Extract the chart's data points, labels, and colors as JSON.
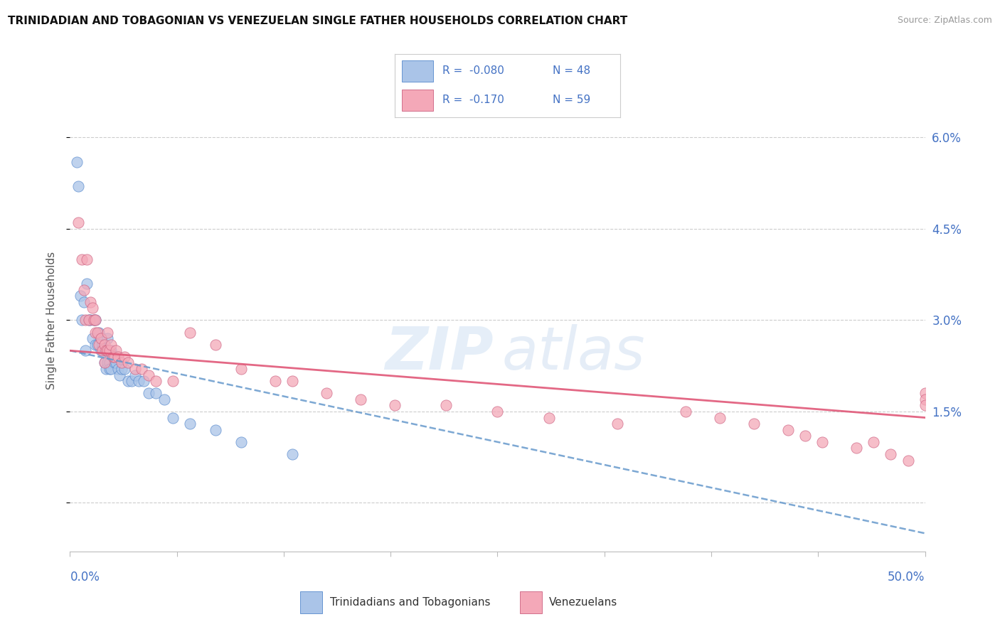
{
  "title": "TRINIDADIAN AND TOBAGONIAN VS VENEZUELAN SINGLE FATHER HOUSEHOLDS CORRELATION CHART",
  "source": "Source: ZipAtlas.com",
  "ylabel": "Single Father Households",
  "xmin": 0.0,
  "xmax": 0.5,
  "ymin": -0.008,
  "ymax": 0.068,
  "yticks": [
    0.0,
    0.015,
    0.03,
    0.045,
    0.06
  ],
  "ytick_labels": [
    "",
    "1.5%",
    "3.0%",
    "4.5%",
    "6.0%"
  ],
  "xticks": [
    0.0,
    0.0625,
    0.125,
    0.1875,
    0.25,
    0.3125,
    0.375,
    0.4375,
    0.5
  ],
  "color_blue": "#aac4e8",
  "color_blue_edge": "#5588cc",
  "color_pink": "#f4a8b8",
  "color_pink_edge": "#cc6080",
  "color_accent": "#4472c4",
  "color_line_blue": "#6699cc",
  "color_line_pink": "#e05878",
  "watermark_zip_color": "#d0dff0",
  "watermark_atlas_color": "#c8d8ec",
  "blue_scatter_x": [
    0.004,
    0.005,
    0.006,
    0.007,
    0.008,
    0.009,
    0.01,
    0.011,
    0.012,
    0.013,
    0.014,
    0.015,
    0.015,
    0.016,
    0.017,
    0.018,
    0.018,
    0.019,
    0.02,
    0.02,
    0.021,
    0.021,
    0.022,
    0.022,
    0.023,
    0.023,
    0.024,
    0.024,
    0.025,
    0.026,
    0.027,
    0.028,
    0.029,
    0.03,
    0.032,
    0.034,
    0.036,
    0.038,
    0.04,
    0.043,
    0.046,
    0.05,
    0.055,
    0.06,
    0.07,
    0.085,
    0.1,
    0.13
  ],
  "blue_scatter_y": [
    0.056,
    0.052,
    0.034,
    0.03,
    0.033,
    0.025,
    0.036,
    0.03,
    0.03,
    0.027,
    0.03,
    0.03,
    0.026,
    0.026,
    0.028,
    0.027,
    0.025,
    0.026,
    0.025,
    0.023,
    0.025,
    0.022,
    0.023,
    0.027,
    0.023,
    0.022,
    0.025,
    0.022,
    0.024,
    0.023,
    0.023,
    0.022,
    0.021,
    0.022,
    0.022,
    0.02,
    0.02,
    0.021,
    0.02,
    0.02,
    0.018,
    0.018,
    0.017,
    0.014,
    0.013,
    0.012,
    0.01,
    0.008
  ],
  "pink_scatter_x": [
    0.005,
    0.007,
    0.008,
    0.009,
    0.01,
    0.011,
    0.012,
    0.013,
    0.014,
    0.015,
    0.015,
    0.016,
    0.017,
    0.018,
    0.019,
    0.02,
    0.02,
    0.021,
    0.022,
    0.022,
    0.023,
    0.024,
    0.025,
    0.026,
    0.027,
    0.028,
    0.03,
    0.032,
    0.034,
    0.038,
    0.042,
    0.046,
    0.05,
    0.06,
    0.07,
    0.085,
    0.1,
    0.12,
    0.13,
    0.15,
    0.17,
    0.19,
    0.22,
    0.25,
    0.28,
    0.32,
    0.36,
    0.38,
    0.4,
    0.42,
    0.43,
    0.44,
    0.46,
    0.47,
    0.48,
    0.49,
    0.5,
    0.5,
    0.5
  ],
  "pink_scatter_y": [
    0.046,
    0.04,
    0.035,
    0.03,
    0.04,
    0.03,
    0.033,
    0.032,
    0.03,
    0.03,
    0.028,
    0.028,
    0.026,
    0.027,
    0.025,
    0.026,
    0.023,
    0.025,
    0.028,
    0.025,
    0.025,
    0.026,
    0.024,
    0.024,
    0.025,
    0.024,
    0.023,
    0.024,
    0.023,
    0.022,
    0.022,
    0.021,
    0.02,
    0.02,
    0.028,
    0.026,
    0.022,
    0.02,
    0.02,
    0.018,
    0.017,
    0.016,
    0.016,
    0.015,
    0.014,
    0.013,
    0.015,
    0.014,
    0.013,
    0.012,
    0.011,
    0.01,
    0.009,
    0.01,
    0.008,
    0.007,
    0.018,
    0.017,
    0.016
  ],
  "blue_trend_x": [
    0.0,
    0.5
  ],
  "blue_trend_y": [
    0.025,
    -0.005
  ],
  "pink_trend_x": [
    0.0,
    0.5
  ],
  "pink_trend_y": [
    0.025,
    0.014
  ],
  "legend_r1": "R =  -0.080",
  "legend_n1": "N = 48",
  "legend_r2": "R =  -0.170",
  "legend_n2": "N = 59"
}
